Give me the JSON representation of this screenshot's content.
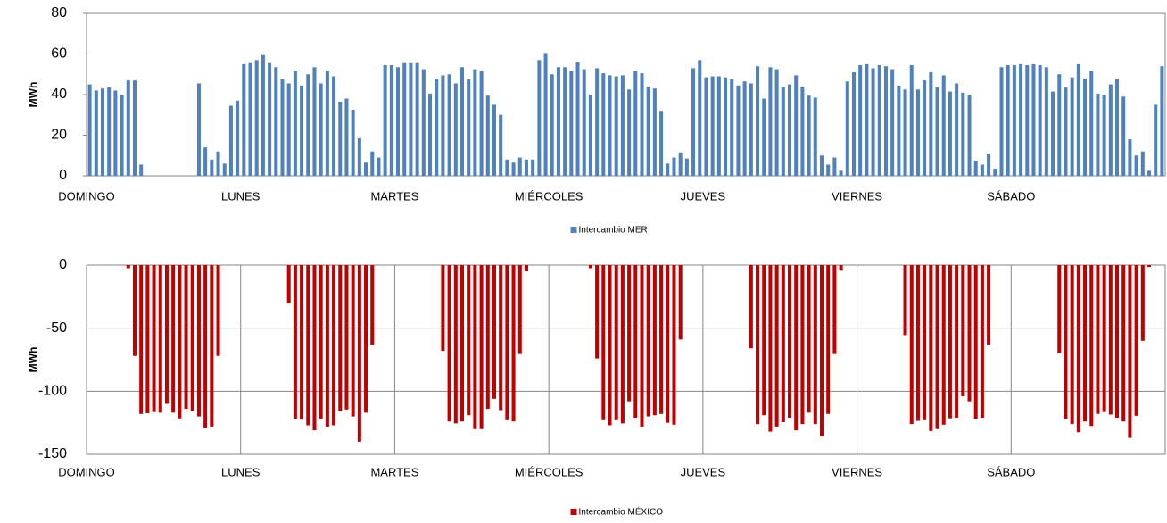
{
  "chart_data": [
    {
      "type": "bar",
      "ylabel": "MWh",
      "ylim": [
        0,
        80
      ],
      "yticks": [
        0,
        20,
        40,
        60,
        80
      ],
      "grid": false,
      "legend": "bottom",
      "categories": [
        "DOMINGO",
        null,
        null,
        null,
        null,
        null,
        null,
        null,
        null,
        null,
        null,
        null,
        null,
        null,
        null,
        null,
        null,
        null,
        null,
        null,
        null,
        null,
        null,
        null,
        "LUNES",
        null,
        null,
        null,
        null,
        null,
        null,
        null,
        null,
        null,
        null,
        null,
        null,
        null,
        null,
        null,
        null,
        null,
        null,
        null,
        null,
        null,
        null,
        null,
        "MARTES",
        null,
        null,
        null,
        null,
        null,
        null,
        null,
        null,
        null,
        null,
        null,
        null,
        null,
        null,
        null,
        null,
        null,
        null,
        null,
        null,
        null,
        null,
        null,
        "MIÉRCOLES",
        null,
        null,
        null,
        null,
        null,
        null,
        null,
        null,
        null,
        null,
        null,
        null,
        null,
        null,
        null,
        null,
        null,
        null,
        null,
        null,
        null,
        null,
        null,
        "JUEVES",
        null,
        null,
        null,
        null,
        null,
        null,
        null,
        null,
        null,
        null,
        null,
        null,
        null,
        null,
        null,
        null,
        null,
        null,
        null,
        null,
        null,
        null,
        null,
        "VIERNES",
        null,
        null,
        null,
        null,
        null,
        null,
        null,
        null,
        null,
        null,
        null,
        null,
        null,
        null,
        null,
        null,
        null,
        null,
        null,
        null,
        null,
        null,
        null,
        "SÁBADO",
        null,
        null,
        null,
        null,
        null,
        null,
        null,
        null,
        null,
        null,
        null,
        null,
        null,
        null,
        null,
        null,
        null,
        null,
        null,
        null,
        null,
        null,
        null
      ],
      "series": [
        {
          "name": "Intercambio MER",
          "color": "#4f81bd",
          "values": [
            45,
            42,
            43,
            43.5,
            42,
            40,
            47,
            47,
            5.5,
            0,
            0,
            0,
            0,
            0,
            0,
            0,
            0,
            45.5,
            14,
            8,
            12,
            6,
            34.5,
            37,
            55,
            55.5,
            57,
            59.5,
            55.5,
            53.5,
            47.5,
            45.5,
            51.5,
            44.5,
            50,
            53.5,
            45.5,
            51.5,
            49,
            36.5,
            38,
            32.5,
            18.5,
            6.5,
            12,
            9,
            54.5,
            54.5,
            53.5,
            55.5,
            55.5,
            55.5,
            52.5,
            40.5,
            47.5,
            49.5,
            50,
            45.5,
            53.5,
            47.5,
            52.5,
            51.5,
            39.5,
            35,
            30,
            8,
            6.5,
            9,
            8,
            8,
            57,
            60.5,
            50,
            53.5,
            53.5,
            51.5,
            56,
            52.5,
            40,
            53,
            50.5,
            49.5,
            49,
            49.5,
            42.5,
            51.5,
            50.5,
            44,
            43,
            32,
            6,
            9,
            11.5,
            8.5,
            53,
            57,
            48.5,
            49,
            49,
            48.5,
            47.5,
            44.5,
            46.5,
            45.5,
            54,
            38,
            53.5,
            52.5,
            43.5,
            45,
            49.5,
            44,
            39.5,
            38.5,
            10,
            5.5,
            9,
            2.5,
            46.5,
            51,
            54.5,
            55,
            53,
            54.5,
            54,
            52.5,
            44.5,
            42.5,
            54.5,
            42.5,
            47,
            51,
            43.5,
            49.5,
            41.5,
            45.5,
            41,
            40,
            7.5,
            5.5,
            11,
            3.5,
            53.5,
            54.5,
            54.5,
            55,
            54.5,
            55,
            54.5,
            53.5,
            41.5,
            50,
            43.5,
            48.5,
            55,
            48,
            51.5,
            40.5,
            40,
            45,
            47.5,
            39,
            18,
            10,
            12,
            2.5,
            35,
            54
          ]
        }
      ]
    },
    {
      "type": "bar",
      "ylabel": "MWh",
      "ylim": [
        -150,
        0
      ],
      "yticks": [
        -150,
        -100,
        -50,
        0
      ],
      "grid": true,
      "legend": "bottom",
      "categories": [
        "DOMINGO",
        null,
        null,
        null,
        null,
        null,
        null,
        null,
        null,
        null,
        null,
        null,
        null,
        null,
        null,
        null,
        null,
        null,
        null,
        null,
        null,
        null,
        null,
        null,
        "LUNES",
        null,
        null,
        null,
        null,
        null,
        null,
        null,
        null,
        null,
        null,
        null,
        null,
        null,
        null,
        null,
        null,
        null,
        null,
        null,
        null,
        null,
        null,
        null,
        "MARTES",
        null,
        null,
        null,
        null,
        null,
        null,
        null,
        null,
        null,
        null,
        null,
        null,
        null,
        null,
        null,
        null,
        null,
        null,
        null,
        null,
        null,
        null,
        null,
        "MIÉRCOLES",
        null,
        null,
        null,
        null,
        null,
        null,
        null,
        null,
        null,
        null,
        null,
        null,
        null,
        null,
        null,
        null,
        null,
        null,
        null,
        null,
        null,
        null,
        null,
        "JUEVES",
        null,
        null,
        null,
        null,
        null,
        null,
        null,
        null,
        null,
        null,
        null,
        null,
        null,
        null,
        null,
        null,
        null,
        null,
        null,
        null,
        null,
        null,
        null,
        "VIERNES",
        null,
        null,
        null,
        null,
        null,
        null,
        null,
        null,
        null,
        null,
        null,
        null,
        null,
        null,
        null,
        null,
        null,
        null,
        null,
        null,
        null,
        null,
        null,
        "SÁBADO",
        null,
        null,
        null,
        null,
        null,
        null,
        null,
        null,
        null,
        null,
        null,
        null,
        null,
        null,
        null,
        null,
        null,
        null,
        null,
        null,
        null,
        null,
        null
      ],
      "series": [
        {
          "name": "Intercambio MÉXICO",
          "color": "#c00000",
          "values": [
            0,
            0,
            0,
            0,
            0,
            0,
            -2.5,
            -72,
            -118,
            -117.5,
            -116.5,
            -117,
            -110,
            -117,
            -121.5,
            -114,
            -116,
            -120,
            -129,
            -128,
            -72,
            0,
            0,
            0,
            0,
            0,
            0,
            0,
            0,
            0,
            0,
            -30,
            -122,
            -122.5,
            -127,
            -131,
            -122,
            -128,
            -127,
            -116,
            -114.5,
            -120,
            -140,
            -117,
            -63,
            0,
            0,
            0,
            0,
            0,
            0,
            0,
            0,
            0,
            0,
            -68,
            -124,
            -125.5,
            -124,
            -119,
            -130,
            -130,
            -114,
            -106,
            -115,
            -123,
            -124,
            -70.5,
            -5,
            0,
            0,
            0,
            0,
            0,
            0,
            0,
            0,
            0,
            -2.5,
            -74,
            -123,
            -127,
            -123,
            -125.5,
            -108,
            -121,
            -128,
            -120,
            -119,
            -118,
            -125,
            -126.5,
            -59,
            0,
            0,
            0,
            0,
            0,
            0,
            0,
            0,
            0,
            0,
            -66,
            -126,
            -119,
            -132,
            -128,
            -124.5,
            -121,
            -131,
            -126,
            -117,
            -126,
            -135.5,
            -118,
            -70.5,
            -4.5,
            0,
            0,
            0,
            0,
            0,
            0,
            0,
            0,
            0,
            -55.5,
            -126,
            -123.5,
            -123,
            -131.5,
            -130,
            -126.5,
            -121.5,
            -121,
            -104,
            -108,
            -122,
            -121,
            -63,
            0,
            0,
            0,
            0,
            0,
            0,
            0,
            0,
            0,
            0,
            -70,
            -122,
            -126,
            -132.5,
            -124,
            -127.5,
            -118,
            -116.5,
            -118.5,
            -121,
            -124,
            -137,
            -119.5,
            -60,
            -1.5,
            0,
            0
          ]
        }
      ]
    }
  ]
}
